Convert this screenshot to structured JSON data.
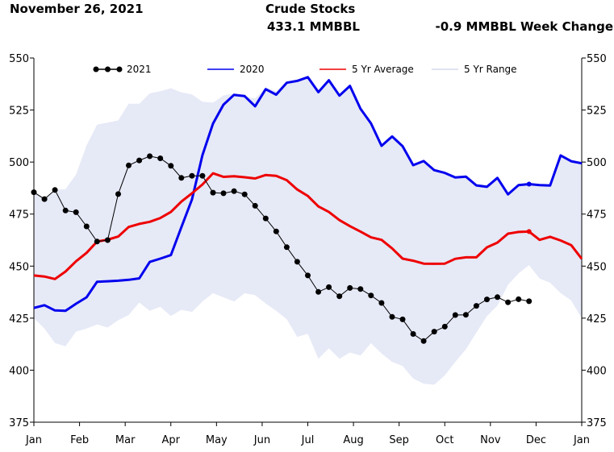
{
  "header": {
    "date": "November 26, 2021",
    "title": "Crude Stocks",
    "current_value": "433.1 MMBBL",
    "week_change": "-0.9 MMBBL Week Change"
  },
  "chart_data": {
    "type": "line",
    "title": "Crude Stocks",
    "xlabel": "",
    "ylabel": "",
    "ylim": [
      375,
      550
    ],
    "yticks": [
      375,
      400,
      425,
      450,
      475,
      500,
      525,
      550
    ],
    "ytick_labels": [
      "375",
      "400",
      "425",
      "450",
      "475",
      "500",
      "525",
      "550"
    ],
    "x_week_range": [
      0,
      52
    ],
    "months": [
      "Jan",
      "Feb",
      "Mar",
      "Apr",
      "May",
      "Jun",
      "Jul",
      "Aug",
      "Sep",
      "Oct",
      "Nov",
      "Dec",
      "Jan"
    ],
    "legend_position": "top",
    "colors": {
      "s2021": "#000000",
      "s2020": "#0000ee",
      "avg": "#ee0000",
      "range": "#e6e9f6"
    },
    "series": [
      {
        "key": "s2021",
        "name": "2021",
        "x": [
          0,
          1,
          2,
          3,
          4,
          5,
          6,
          7,
          8,
          9,
          10,
          11,
          12,
          13,
          14,
          15,
          16,
          17,
          18,
          19,
          20,
          21,
          22,
          23,
          24,
          25,
          26,
          27,
          28,
          29,
          30,
          31,
          32,
          33,
          34,
          35,
          36,
          37,
          38,
          39,
          40,
          41,
          42,
          43,
          44,
          45,
          46,
          47
        ],
        "values": [
          485.5,
          482.2,
          486.6,
          476.7,
          475.9,
          469.1,
          461.8,
          462.5,
          484.6,
          498.4,
          500.8,
          502.8,
          501.8,
          498.2,
          492.4,
          493.4,
          493.4,
          485.3,
          485.0,
          486.0,
          484.5,
          479.0,
          472.9,
          466.7,
          459.1,
          452.1,
          445.5,
          437.6,
          439.9,
          435.5,
          439.5,
          439.0,
          435.9,
          432.3,
          425.6,
          424.4,
          417.4,
          414.0,
          418.5,
          420.9,
          426.5,
          426.6,
          430.9,
          434.0,
          435.1,
          432.6,
          434.1,
          433.1
        ]
      },
      {
        "key": "s2020",
        "name": "2020",
        "x": [
          0,
          1,
          2,
          3,
          4,
          5,
          6,
          7,
          8,
          9,
          10,
          11,
          12,
          13,
          14,
          15,
          16,
          17,
          18,
          19,
          20,
          21,
          22,
          23,
          24,
          25,
          26,
          27,
          28,
          29,
          30,
          31,
          32,
          33,
          34,
          35,
          36,
          37,
          38,
          39,
          40,
          41,
          42,
          43,
          44,
          45,
          46,
          47,
          48,
          49,
          50,
          51,
          52
        ],
        "values": [
          429.9,
          431.2,
          428.7,
          428.5,
          431.9,
          435.0,
          442.5,
          442.7,
          443.0,
          443.4,
          444.1,
          452.0,
          453.6,
          455.3,
          468.7,
          482.0,
          503.3,
          518.5,
          527.6,
          532.3,
          531.7,
          526.8,
          535.0,
          532.4,
          538.1,
          539.0,
          540.8,
          533.6,
          539.3,
          531.9,
          536.6,
          525.6,
          518.6,
          507.8,
          512.3,
          507.6,
          498.5,
          500.5,
          496.1,
          494.8,
          492.6,
          493.0,
          488.8,
          488.1,
          492.4,
          484.5,
          488.9,
          489.4,
          488.9,
          488.7,
          503.2,
          500.4,
          499.4
        ]
      },
      {
        "key": "avg",
        "name": "5 Yr Average",
        "x": [
          0,
          1,
          2,
          3,
          4,
          5,
          6,
          7,
          8,
          9,
          10,
          11,
          12,
          13,
          14,
          15,
          16,
          17,
          18,
          19,
          20,
          21,
          22,
          23,
          24,
          25,
          26,
          27,
          28,
          29,
          30,
          31,
          32,
          33,
          34,
          35,
          36,
          37,
          38,
          39,
          40,
          41,
          42,
          43,
          44,
          45,
          46,
          47,
          48,
          49,
          50,
          51,
          52
        ],
        "values": [
          445.5,
          445.0,
          443.8,
          447.4,
          452.3,
          456.4,
          461.8,
          462.7,
          464.2,
          468.8,
          470.3,
          471.3,
          473.1,
          476.0,
          481.0,
          485.0,
          489.2,
          494.6,
          492.9,
          493.2,
          492.7,
          492.1,
          493.8,
          493.4,
          491.3,
          486.8,
          483.7,
          478.7,
          476.0,
          472.1,
          469.2,
          466.6,
          463.8,
          462.6,
          458.5,
          453.6,
          452.6,
          451.2,
          451.1,
          451.2,
          453.5,
          454.2,
          454.2,
          459.0,
          461.3,
          465.6,
          466.4,
          466.6,
          462.6,
          464.1,
          462.3,
          460.1,
          453.5
        ]
      },
      {
        "key": "range_high",
        "name": "5 Yr Range (high)",
        "x": [
          0,
          1,
          2,
          3,
          4,
          5,
          6,
          7,
          8,
          9,
          10,
          11,
          12,
          13,
          14,
          15,
          16,
          17,
          18,
          19,
          20,
          21,
          22,
          23,
          24,
          25,
          26,
          27,
          28,
          29,
          30,
          31,
          32,
          33,
          34,
          35,
          36,
          37,
          38,
          39,
          40,
          41,
          42,
          43,
          44,
          45,
          46,
          47,
          48,
          49,
          50,
          51,
          52
        ],
        "values": [
          485.5,
          482.2,
          486.6,
          487,
          494,
          508,
          518,
          519,
          520,
          528,
          528,
          533,
          534,
          535.5,
          533.5,
          532.5,
          529,
          528.5,
          532,
          533,
          531.5,
          530.5,
          536,
          534,
          538.5,
          539.5,
          540.8,
          533.6,
          539.3,
          531.9,
          536.6,
          525.6,
          518.6,
          507.8,
          512.3,
          507.6,
          499,
          501,
          497,
          495,
          493,
          493.5,
          489.5,
          489,
          493,
          485,
          489.5,
          490,
          489.5,
          489.5,
          503.5,
          501,
          500
        ]
      },
      {
        "key": "range_low",
        "name": "5 Yr Range (low)",
        "x": [
          0,
          1,
          2,
          3,
          4,
          5,
          6,
          7,
          8,
          9,
          10,
          11,
          12,
          13,
          14,
          15,
          16,
          17,
          18,
          19,
          20,
          21,
          22,
          23,
          24,
          25,
          26,
          27,
          28,
          29,
          30,
          31,
          32,
          33,
          34,
          35,
          36,
          37,
          38,
          39,
          40,
          41,
          42,
          43,
          44,
          45,
          46,
          47,
          48,
          49,
          50,
          51,
          52
        ],
        "values": [
          425,
          420,
          413,
          411.5,
          418.5,
          420,
          422,
          420.5,
          424,
          426.5,
          432.5,
          428.5,
          430.5,
          426,
          429,
          428,
          433,
          437,
          435,
          433,
          437,
          436,
          432,
          428.5,
          424.5,
          416,
          417.5,
          405.5,
          410.5,
          405.5,
          408.5,
          407,
          413,
          408,
          404,
          402,
          396,
          393.5,
          393,
          397.5,
          404,
          410,
          418,
          426,
          431,
          441,
          446.5,
          450.5,
          444,
          442,
          437,
          433.5,
          425
        ]
      }
    ]
  }
}
